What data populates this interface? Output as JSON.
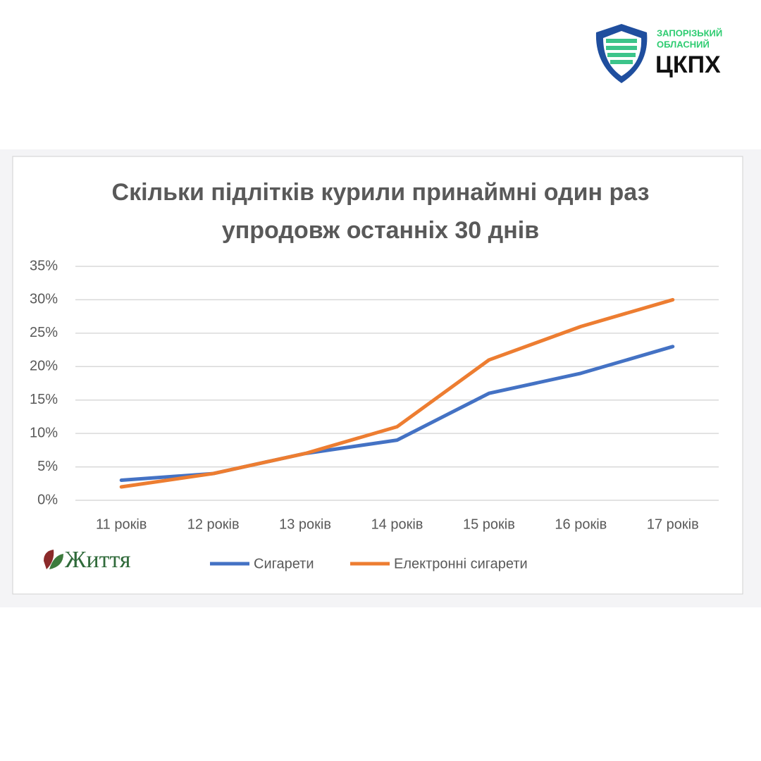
{
  "header": {
    "org_line1": "ЗАПОРІЗЬКИЙ",
    "org_line2": "ОБЛАСНИЙ",
    "org_name": "ЦКПХ"
  },
  "watermark": "Життя",
  "chart_data": {
    "type": "line",
    "title": "Скільки підлітків курили принаймні один раз упродовж останніх 30 днів",
    "categories": [
      "11 років",
      "12 років",
      "13 років",
      "14 років",
      "15 років",
      "16 років",
      "17 років"
    ],
    "series": [
      {
        "name": "Сигарети",
        "color": "#4472c4",
        "values": [
          3,
          4,
          7,
          9,
          16,
          19,
          23
        ]
      },
      {
        "name": "Електронні сигарети",
        "color": "#ed7d31",
        "values": [
          2,
          4,
          7,
          11,
          21,
          26,
          30
        ]
      }
    ],
    "ylim": [
      0,
      35
    ],
    "yticks": [
      {
        "value": 0,
        "label": "0%"
      },
      {
        "value": 5,
        "label": "5%"
      },
      {
        "value": 10,
        "label": "10%"
      },
      {
        "value": 15,
        "label": "15%"
      },
      {
        "value": 20,
        "label": "20%"
      },
      {
        "value": 25,
        "label": "25%"
      },
      {
        "value": 30,
        "label": "30%"
      },
      {
        "value": 35,
        "label": "35%"
      }
    ],
    "grid": true,
    "legend": "bottom"
  }
}
